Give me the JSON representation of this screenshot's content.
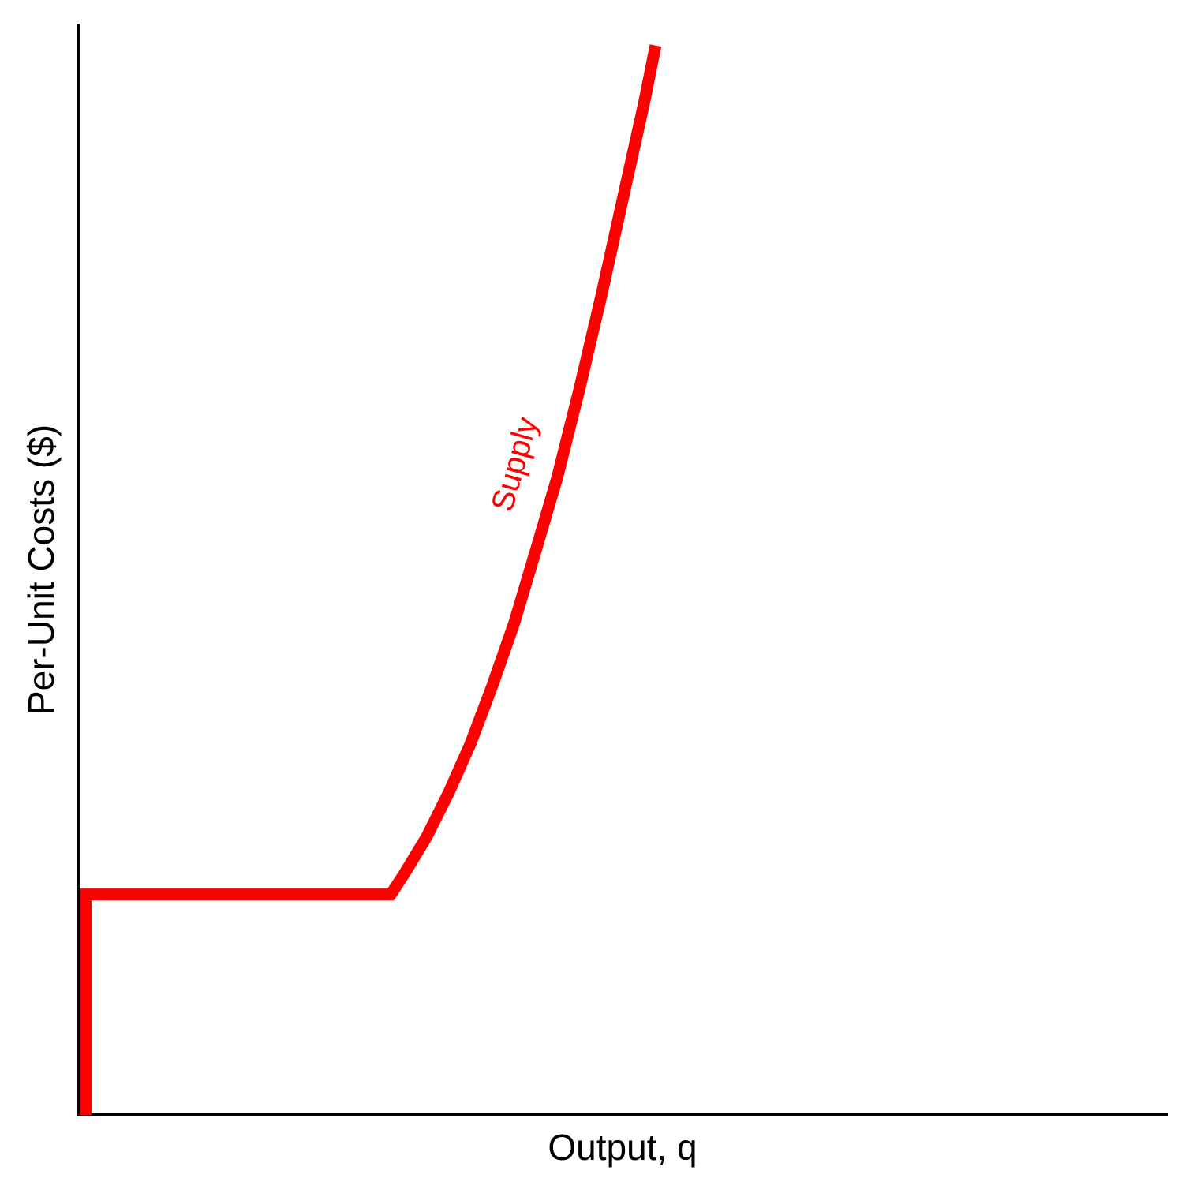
{
  "chart_data": {
    "type": "line",
    "xlabel": "Output, q",
    "ylabel": "Per-Unit Costs ($)",
    "xlim": [
      0,
      100
    ],
    "ylim": [
      0,
      100
    ],
    "grid": false,
    "colors": {
      "axis": "#000000",
      "supply": "#ff0000"
    },
    "annotations": [
      {
        "text": "Supply",
        "color": "#ff0000"
      }
    ],
    "series": [
      {
        "name": "Supply",
        "points": [
          {
            "x": 0.7,
            "y": 0
          },
          {
            "x": 0.7,
            "y": 20.2
          },
          {
            "x": 28.7,
            "y": 20.2
          },
          {
            "x": 30,
            "y": 22.2
          },
          {
            "x": 32,
            "y": 25.5
          },
          {
            "x": 34,
            "y": 29.5
          },
          {
            "x": 36,
            "y": 34.0
          },
          {
            "x": 38,
            "y": 39.3
          },
          {
            "x": 40,
            "y": 45.0
          },
          {
            "x": 42,
            "y": 51.7
          },
          {
            "x": 44,
            "y": 58.5
          },
          {
            "x": 46,
            "y": 66.5
          },
          {
            "x": 48,
            "y": 75.0
          },
          {
            "x": 50,
            "y": 84.0
          },
          {
            "x": 52,
            "y": 93.0
          },
          {
            "x": 53,
            "y": 98.0
          }
        ]
      }
    ]
  }
}
